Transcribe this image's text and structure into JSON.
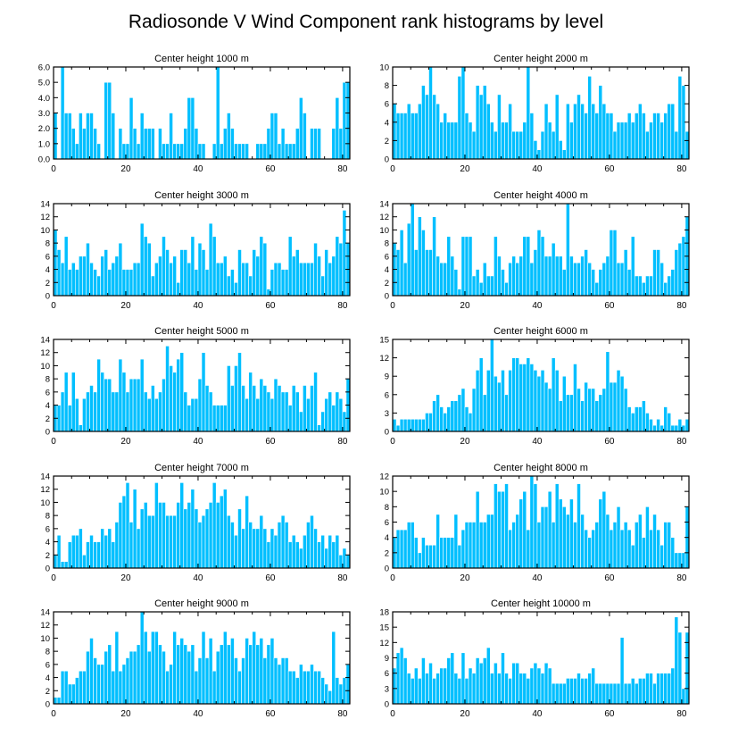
{
  "figure": {
    "title": "Radiosonde V Wind Component rank histograms by level"
  },
  "style": {
    "bar_color": "#00BFFF",
    "bar_edge": "#ffffff",
    "axis_color": "#000000"
  },
  "chart_data": [
    {
      "type": "bar",
      "title": "Center height 1000 m",
      "xlim": [
        0,
        82
      ],
      "ylim": [
        0,
        6
      ],
      "xticks": [
        0,
        20,
        40,
        60,
        80
      ],
      "yticks": [
        0,
        1,
        2,
        3,
        4,
        5,
        6
      ],
      "ytick_labels": [
        "0.0",
        "1.0",
        "2.0",
        "3.0",
        "4.0",
        "5.0",
        "6.0"
      ],
      "values": [
        3,
        0,
        6,
        3,
        3,
        2,
        1,
        3,
        2,
        3,
        3,
        2,
        1,
        0,
        5,
        5,
        3,
        0,
        2,
        1,
        1,
        4,
        2,
        1,
        3,
        2,
        2,
        2,
        0,
        2,
        1,
        1,
        3,
        1,
        1,
        1,
        2,
        4,
        4,
        2,
        1,
        1,
        0,
        0,
        1,
        6,
        1,
        2,
        3,
        2,
        1,
        1,
        1,
        1,
        0,
        0,
        1,
        1,
        1,
        2,
        3,
        3,
        1,
        2,
        1,
        1,
        1,
        2,
        4,
        3,
        0,
        2,
        2,
        2,
        0,
        0,
        0,
        2,
        4,
        2,
        5,
        5
      ]
    },
    {
      "type": "bar",
      "title": "Center height 2000 m",
      "xlim": [
        0,
        82
      ],
      "ylim": [
        0,
        10
      ],
      "xticks": [
        0,
        20,
        40,
        60,
        80
      ],
      "yticks": [
        0,
        2,
        4,
        6,
        8,
        10
      ],
      "ytick_labels": [
        "0",
        "2",
        "4",
        "6",
        "8",
        "10"
      ],
      "values": [
        6,
        5,
        5,
        5,
        6,
        5,
        5,
        6,
        8,
        7,
        10,
        7,
        6,
        4,
        5,
        4,
        4,
        4,
        9,
        10,
        5,
        4,
        3,
        8,
        7,
        8,
        6,
        4,
        3,
        7,
        4,
        4,
        6,
        3,
        3,
        3,
        4,
        10,
        5,
        2,
        1,
        3,
        6,
        4,
        3,
        7,
        2,
        1,
        6,
        4,
        6,
        7,
        6,
        5,
        9,
        6,
        5,
        8,
        6,
        5,
        5,
        3,
        4,
        4,
        4,
        5,
        4,
        5,
        6,
        5,
        3,
        4,
        5,
        5,
        4,
        5,
        6,
        6,
        3,
        9,
        8,
        3
      ]
    },
    {
      "type": "bar",
      "title": "Center height 3000 m",
      "xlim": [
        0,
        82
      ],
      "ylim": [
        0,
        14
      ],
      "xticks": [
        0,
        20,
        40,
        60,
        80
      ],
      "yticks": [
        0,
        2,
        4,
        6,
        8,
        10,
        12,
        14
      ],
      "ytick_labels": [
        "0",
        "2",
        "4",
        "6",
        "8",
        "10",
        "12",
        "14"
      ],
      "values": [
        10,
        7,
        5,
        9,
        4,
        5,
        4,
        6,
        6,
        8,
        5,
        4,
        3,
        6,
        7,
        4,
        5,
        6,
        8,
        4,
        4,
        4,
        5,
        5,
        11,
        9,
        8,
        3,
        5,
        6,
        9,
        7,
        5,
        6,
        2,
        7,
        7,
        5,
        9,
        4,
        8,
        7,
        4,
        11,
        9,
        5,
        5,
        6,
        3,
        4,
        2,
        7,
        5,
        5,
        3,
        7,
        6,
        9,
        8,
        1,
        4,
        5,
        5,
        4,
        4,
        9,
        6,
        7,
        5,
        5,
        5,
        5,
        8,
        6,
        3,
        7,
        5,
        6,
        9,
        8,
        13,
        8
      ]
    },
    {
      "type": "bar",
      "title": "Center height 4000 m",
      "xlim": [
        0,
        82
      ],
      "ylim": [
        0,
        14
      ],
      "xticks": [
        0,
        20,
        40,
        60,
        80
      ],
      "yticks": [
        0,
        2,
        4,
        6,
        8,
        10,
        12,
        14
      ],
      "ytick_labels": [
        "0",
        "2",
        "4",
        "6",
        "8",
        "10",
        "12",
        "14"
      ],
      "values": [
        8,
        7,
        10,
        5,
        11,
        14,
        7,
        12,
        10,
        7,
        7,
        12,
        6,
        5,
        5,
        9,
        6,
        4,
        1,
        9,
        9,
        9,
        3,
        4,
        2,
        5,
        3,
        3,
        9,
        6,
        4,
        2,
        5,
        6,
        5,
        6,
        9,
        9,
        5,
        7,
        10,
        9,
        6,
        6,
        8,
        6,
        6,
        4,
        14,
        6,
        5,
        5,
        6,
        7,
        5,
        4,
        2,
        4,
        5,
        6,
        10,
        10,
        5,
        5,
        7,
        4,
        9,
        3,
        3,
        2,
        3,
        3,
        7,
        7,
        5,
        2,
        3,
        4,
        7,
        8,
        9,
        12
      ]
    },
    {
      "type": "bar",
      "title": "Center height 5000 m",
      "xlim": [
        0,
        82
      ],
      "ylim": [
        0,
        14
      ],
      "xticks": [
        0,
        20,
        40,
        60,
        80
      ],
      "yticks": [
        0,
        2,
        4,
        6,
        8,
        10,
        12,
        14
      ],
      "ytick_labels": [
        "0",
        "2",
        "4",
        "6",
        "8",
        "10",
        "12",
        "14"
      ],
      "values": [
        4,
        4,
        6,
        9,
        4,
        9,
        5,
        1,
        5,
        6,
        7,
        6,
        11,
        9,
        8,
        8,
        6,
        6,
        11,
        9,
        6,
        8,
        8,
        8,
        11,
        6,
        5,
        7,
        5,
        6,
        8,
        13,
        10,
        9,
        11,
        12,
        6,
        4,
        5,
        5,
        8,
        12,
        7,
        6,
        4,
        4,
        4,
        4,
        10,
        7,
        10,
        12,
        7,
        5,
        9,
        7,
        5,
        8,
        7,
        6,
        5,
        8,
        7,
        6,
        6,
        4,
        7,
        6,
        3,
        7,
        5,
        7,
        9,
        1,
        3,
        5,
        6,
        4,
        6,
        5,
        3,
        8
      ]
    },
    {
      "type": "bar",
      "title": "Center height 6000 m",
      "xlim": [
        0,
        82
      ],
      "ylim": [
        0,
        15
      ],
      "xticks": [
        0,
        20,
        40,
        60,
        80
      ],
      "yticks": [
        0,
        3,
        6,
        9,
        12,
        15
      ],
      "ytick_labels": [
        "0",
        "3",
        "6",
        "9",
        "12",
        "15"
      ],
      "values": [
        2,
        1,
        2,
        2,
        2,
        2,
        2,
        2,
        2,
        3,
        3,
        5,
        6,
        4,
        3,
        4,
        5,
        5,
        6,
        7,
        4,
        3,
        7,
        10,
        12,
        6,
        10,
        15,
        9,
        8,
        10,
        6,
        10,
        12,
        12,
        11,
        11,
        12,
        11,
        10,
        9,
        10,
        8,
        7,
        12,
        10,
        5,
        9,
        6,
        6,
        11,
        7,
        5,
        8,
        7,
        7,
        5,
        6,
        7,
        13,
        8,
        8,
        10,
        9,
        7,
        4,
        3,
        4,
        4,
        5,
        3,
        2,
        1,
        2,
        1,
        4,
        3,
        1,
        1,
        2,
        1,
        2
      ]
    },
    {
      "type": "bar",
      "title": "Center height 7000 m",
      "xlim": [
        0,
        82
      ],
      "ylim": [
        0,
        14
      ],
      "xticks": [
        0,
        20,
        40,
        60,
        80
      ],
      "yticks": [
        0,
        2,
        4,
        6,
        8,
        10,
        12,
        14
      ],
      "ytick_labels": [
        "0",
        "2",
        "4",
        "6",
        "8",
        "10",
        "12",
        "14"
      ],
      "values": [
        2,
        5,
        1,
        1,
        4,
        5,
        5,
        6,
        2,
        4,
        5,
        4,
        4,
        6,
        5,
        6,
        4,
        7,
        10,
        11,
        13,
        7,
        12,
        6,
        9,
        10,
        8,
        8,
        13,
        10,
        10,
        8,
        8,
        8,
        10,
        13,
        9,
        10,
        12,
        9,
        7,
        8,
        9,
        10,
        13,
        10,
        11,
        12,
        8,
        7,
        5,
        9,
        6,
        11,
        7,
        6,
        6,
        8,
        6,
        4,
        6,
        5,
        7,
        8,
        7,
        4,
        5,
        4,
        3,
        5,
        7,
        8,
        6,
        4,
        5,
        3,
        5,
        4,
        5,
        2,
        3,
        2
      ]
    },
    {
      "type": "bar",
      "title": "Center height 8000 m",
      "xlim": [
        0,
        82
      ],
      "ylim": [
        0,
        12
      ],
      "xticks": [
        0,
        20,
        40,
        60,
        80
      ],
      "yticks": [
        0,
        2,
        4,
        6,
        8,
        10,
        12
      ],
      "ytick_labels": [
        "0",
        "2",
        "4",
        "6",
        "8",
        "10",
        "12"
      ],
      "values": [
        4,
        5,
        5,
        5,
        6,
        6,
        4,
        2,
        4,
        3,
        3,
        3,
        7,
        4,
        4,
        4,
        4,
        7,
        3,
        5,
        6,
        6,
        6,
        10,
        6,
        6,
        7,
        7,
        11,
        10,
        10,
        11,
        5,
        6,
        7,
        9,
        10,
        5,
        12,
        11,
        6,
        8,
        8,
        10,
        6,
        11,
        9,
        8,
        7,
        9,
        6,
        11,
        7,
        5,
        4,
        5,
        6,
        9,
        10,
        7,
        5,
        6,
        8,
        5,
        6,
        5,
        3,
        6,
        7,
        4,
        8,
        5,
        7,
        5,
        3,
        6,
        6,
        4,
        2,
        2,
        2,
        8
      ]
    },
    {
      "type": "bar",
      "title": "Center height 9000 m",
      "xlim": [
        0,
        82
      ],
      "ylim": [
        0,
        14
      ],
      "xticks": [
        0,
        20,
        40,
        60,
        80
      ],
      "yticks": [
        0,
        2,
        4,
        6,
        8,
        10,
        12,
        14
      ],
      "ytick_labels": [
        "0",
        "2",
        "4",
        "6",
        "8",
        "10",
        "12",
        "14"
      ],
      "values": [
        1,
        1,
        5,
        5,
        3,
        3,
        4,
        5,
        5,
        8,
        10,
        7,
        6,
        6,
        8,
        9,
        5,
        11,
        5,
        6,
        7,
        8,
        8,
        9,
        14,
        11,
        8,
        11,
        11,
        9,
        8,
        5,
        6,
        11,
        9,
        10,
        9,
        8,
        9,
        5,
        7,
        11,
        7,
        10,
        5,
        8,
        9,
        11,
        9,
        10,
        7,
        5,
        7,
        10,
        9,
        11,
        9,
        10,
        7,
        9,
        10,
        7,
        6,
        7,
        7,
        5,
        5,
        4,
        6,
        5,
        5,
        6,
        5,
        5,
        4,
        3,
        2,
        11,
        4,
        3,
        4,
        6
      ]
    },
    {
      "type": "bar",
      "title": "Center height 10000 m",
      "xlim": [
        0,
        82
      ],
      "ylim": [
        0,
        18
      ],
      "xticks": [
        0,
        20,
        40,
        60,
        80
      ],
      "yticks": [
        0,
        3,
        6,
        9,
        12,
        15,
        18
      ],
      "ytick_labels": [
        "0",
        "3",
        "6",
        "9",
        "12",
        "15",
        "18"
      ],
      "values": [
        7,
        10,
        11,
        9,
        6,
        5,
        7,
        5,
        9,
        6,
        8,
        5,
        6,
        7,
        7,
        9,
        10,
        6,
        5,
        10,
        5,
        7,
        6,
        9,
        8,
        9,
        11,
        6,
        8,
        6,
        10,
        6,
        5,
        8,
        8,
        6,
        6,
        5,
        7,
        8,
        7,
        6,
        8,
        7,
        4,
        4,
        4,
        4,
        5,
        5,
        5,
        6,
        5,
        5,
        6,
        7,
        4,
        4,
        4,
        4,
        4,
        4,
        4,
        13,
        4,
        4,
        5,
        4,
        5,
        5,
        6,
        6,
        4,
        6,
        6,
        6,
        6,
        7,
        17,
        14,
        3,
        14
      ]
    }
  ]
}
